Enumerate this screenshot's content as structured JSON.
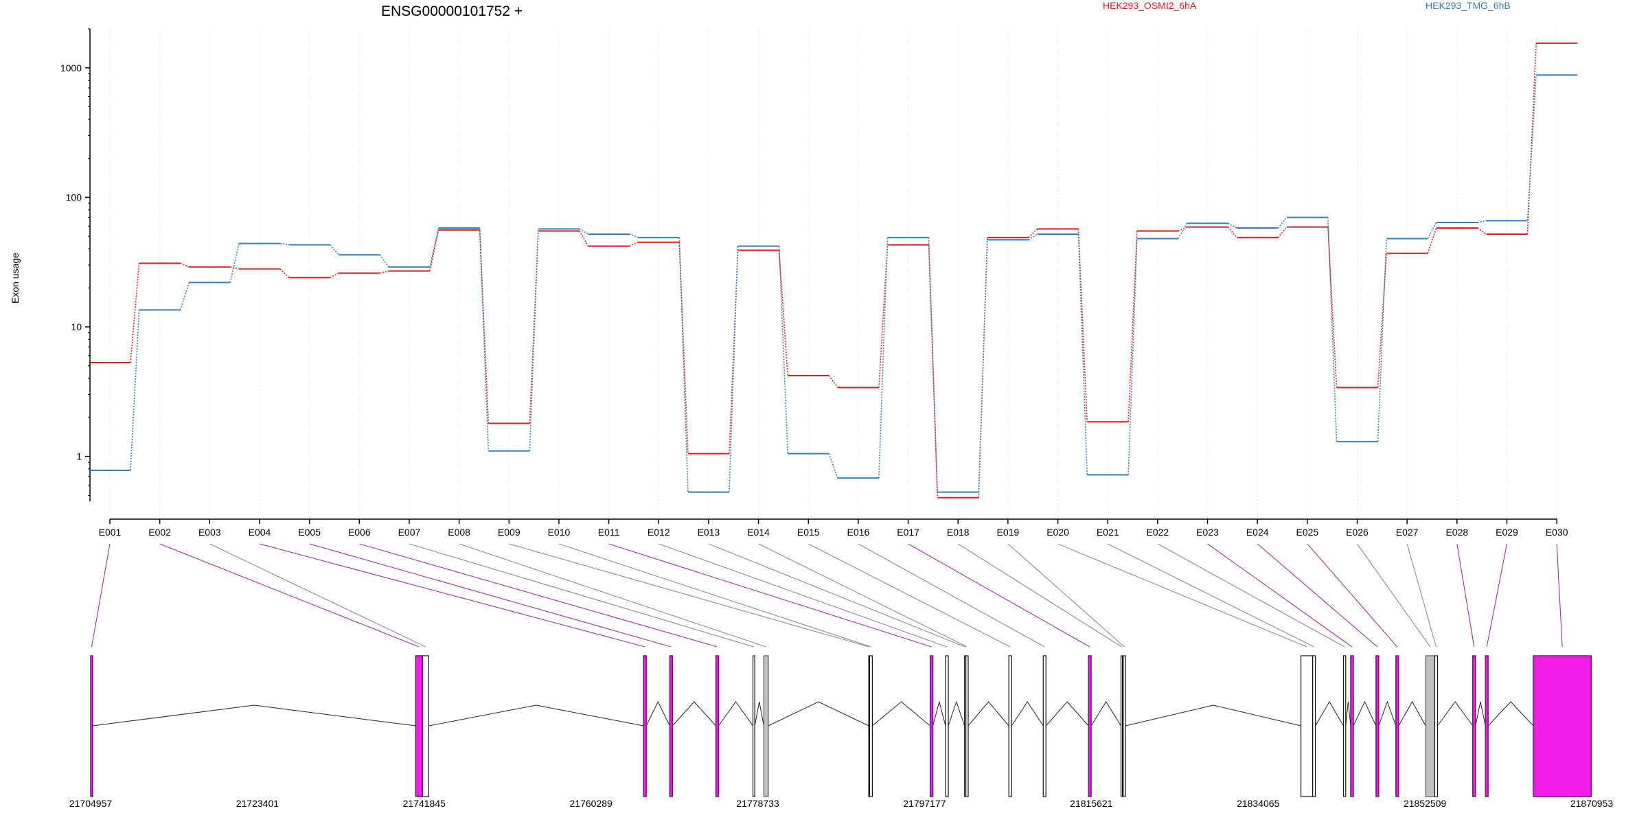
{
  "chart_data": {
    "type": "line",
    "title": "ENSG00000101752 +",
    "ylabel": "Exon usage",
    "xlabel": "",
    "yscale": "log",
    "ylim": [
      0.45,
      2000
    ],
    "yticks": [
      "1",
      "10",
      "100",
      "1000"
    ],
    "grid": "vertical dotted",
    "legend_position": "top",
    "categories": [
      "E001",
      "E002",
      "E003",
      "E004",
      "E005",
      "E006",
      "E007",
      "E008",
      "E009",
      "E010",
      "E011",
      "E012",
      "E013",
      "E014",
      "E015",
      "E016",
      "E017",
      "E018",
      "E019",
      "E020",
      "E021",
      "E022",
      "E023",
      "E024",
      "E025",
      "E026",
      "E027",
      "E028",
      "E029",
      "E030"
    ],
    "series": [
      {
        "name": "HEK293_OSMI2_6hA",
        "color": "#e41a1c",
        "values": [
          5.3,
          31,
          29,
          28,
          24,
          26,
          27,
          56,
          1.8,
          55,
          42,
          45,
          1.05,
          39,
          4.2,
          3.4,
          43,
          0.48,
          49,
          57,
          1.85,
          55,
          59,
          49,
          59,
          3.4,
          37,
          58,
          52,
          1550
        ]
      },
      {
        "name": "HEK293_TMG_6hB",
        "color": "#377eb8",
        "values": [
          0.78,
          13.5,
          22,
          44,
          43,
          36,
          29,
          58,
          1.1,
          57,
          52,
          49,
          0.53,
          42,
          1.05,
          0.68,
          49,
          0.53,
          47,
          52,
          0.72,
          48,
          63,
          58,
          70,
          1.3,
          48,
          64,
          66,
          880
        ]
      }
    ]
  },
  "gene_model": {
    "coordinate_labels": [
      "21704957",
      "21723401",
      "21741845",
      "21760289",
      "21778733",
      "21797177",
      "21815621",
      "21834065",
      "21852509",
      "21870953"
    ],
    "coordinate_range": [
      21704957,
      21870953
    ],
    "highlight_color": "#f01ee6",
    "line_color": "#9932a0",
    "exons": [
      {
        "id": "E001",
        "start": 21704957,
        "end": 21705180,
        "style": "highlight"
      },
      {
        "id": "E002",
        "start": 21740900,
        "end": 21741650,
        "style": "highlight"
      },
      {
        "id": "E003",
        "start": 21741650,
        "end": 21742350,
        "style": "plain"
      },
      {
        "id": "E004",
        "start": 21766100,
        "end": 21766400,
        "style": "highlight"
      },
      {
        "id": "E005",
        "start": 21769000,
        "end": 21769300,
        "style": "highlight"
      },
      {
        "id": "E006",
        "start": 21774100,
        "end": 21774400,
        "style": "highlight"
      },
      {
        "id": "E007",
        "start": 21778200,
        "end": 21778400,
        "style": "plain"
      },
      {
        "id": "E008",
        "start": 21779400,
        "end": 21779900,
        "style": "grey"
      },
      {
        "id": "E009",
        "start": 21791000,
        "end": 21791100,
        "style": "plain"
      },
      {
        "id": "E010",
        "start": 21791100,
        "end": 21791400,
        "style": "plain"
      },
      {
        "id": "E011",
        "start": 21797800,
        "end": 21798100,
        "style": "highlight"
      },
      {
        "id": "E012",
        "start": 21799500,
        "end": 21799800,
        "style": "plain"
      },
      {
        "id": "E013",
        "start": 21801600,
        "end": 21801700,
        "style": "plain"
      },
      {
        "id": "E014",
        "start": 21801750,
        "end": 21802000,
        "style": "plain"
      },
      {
        "id": "E015",
        "start": 21806500,
        "end": 21806800,
        "style": "plain"
      },
      {
        "id": "E016",
        "start": 21810300,
        "end": 21810600,
        "style": "plain"
      },
      {
        "id": "E017",
        "start": 21815300,
        "end": 21815600,
        "style": "highlight"
      },
      {
        "id": "E018",
        "start": 21818900,
        "end": 21819050,
        "style": "plain"
      },
      {
        "id": "E019",
        "start": 21819150,
        "end": 21819400,
        "style": "plain"
      },
      {
        "id": "E020",
        "start": 21838800,
        "end": 21840100,
        "style": "plain"
      },
      {
        "id": "E021",
        "start": 21840100,
        "end": 21840400,
        "style": "plain"
      },
      {
        "id": "E022",
        "start": 21843500,
        "end": 21843750,
        "style": "plain"
      },
      {
        "id": "E023",
        "start": 21844300,
        "end": 21844600,
        "style": "highlight"
      },
      {
        "id": "E024",
        "start": 21847100,
        "end": 21847400,
        "style": "highlight"
      },
      {
        "id": "E025",
        "start": 21849300,
        "end": 21849600,
        "style": "highlight"
      },
      {
        "id": "E026",
        "start": 21852600,
        "end": 21853600,
        "style": "grey"
      },
      {
        "id": "E027",
        "start": 21853600,
        "end": 21853900,
        "style": "plain"
      },
      {
        "id": "E028",
        "start": 21857800,
        "end": 21858100,
        "style": "highlight"
      },
      {
        "id": "E029",
        "start": 21859200,
        "end": 21859500,
        "style": "highlight"
      },
      {
        "id": "E030",
        "start": 21864500,
        "end": 21870900,
        "style": "highlight"
      }
    ]
  }
}
